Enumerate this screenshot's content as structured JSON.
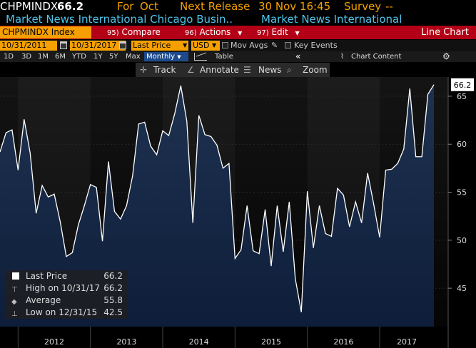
{
  "header": {
    "ticker": "CHPMINDX",
    "last": "66.2",
    "for_label": "For",
    "for_value": "Oct",
    "next_release_label": "Next Release",
    "next_release_value": "30 Nov 16:45",
    "survey_label": "Survey",
    "survey_value": "--",
    "source_left": "Market News International Chicago Busin..",
    "source_right": "Market News International"
  },
  "toolbar": {
    "ticker_field": "CHPMINDX Index",
    "compare_num": "95)",
    "compare_label": "Compare",
    "actions_num": "96)",
    "actions_label": "Actions",
    "edit_num": "97)",
    "edit_label": "Edit",
    "chart_type": "Line Chart"
  },
  "range": {
    "start": "10/31/2011",
    "end": "10/31/2017",
    "field": "Last Price",
    "currency": "USD",
    "mov_avgs": "Mov Avgs",
    "key_events": "Key Events"
  },
  "periods": {
    "items": [
      "1D",
      "3D",
      "1M",
      "6M",
      "YTD",
      "1Y",
      "5Y",
      "Max"
    ],
    "frequency": "Monthly",
    "table_label": "Table",
    "chart_content_label": "Chart Content"
  },
  "tools": {
    "track": "Track",
    "annotate": "Annotate",
    "news": "News",
    "zoom": "Zoom"
  },
  "legend": {
    "last_price_label": "Last Price",
    "last_price_value": "66.2",
    "high_label": "High on 10/31/17",
    "high_value": "66.2",
    "average_label": "Average",
    "average_value": "55.8",
    "low_label": "Low on 12/31/15",
    "low_value": "42.5"
  },
  "colors": {
    "background": "#000000",
    "accent_orange": "#f5a000",
    "toolbar_red": "#b30016",
    "source_cyan": "#4fc3e8",
    "area_fill_top": "#203a5c",
    "line": "#ffffff"
  },
  "chart_data": {
    "type": "area",
    "x_start": "2011-10",
    "x_end": "2017-10",
    "frequency": "monthly",
    "x_ticks": [
      "2012",
      "2013",
      "2014",
      "2015",
      "2016",
      "2017"
    ],
    "y_ticks": [
      45,
      50,
      55,
      60,
      65
    ],
    "ylim": [
      41,
      67
    ],
    "last_value_label": "66.2",
    "series": [
      {
        "name": "Last Price",
        "values": [
          59.2,
          61.2,
          61.5,
          57.3,
          62.6,
          59.1,
          52.8,
          55.7,
          54.5,
          54.8,
          51.9,
          48.3,
          48.7,
          51.6,
          53.6,
          55.8,
          55.5,
          49.9,
          58.2,
          53.0,
          52.2,
          53.6,
          56.7,
          62.1,
          62.3,
          59.8,
          58.9,
          61.4,
          60.9,
          63.2,
          66.1,
          62.4,
          51.8,
          63.0,
          61.0,
          60.8,
          59.9,
          57.5,
          58.0,
          48.1,
          49.0,
          53.6,
          48.9,
          48.6,
          53.2,
          47.3,
          53.6,
          48.8,
          54.0,
          46.0,
          42.5,
          55.1,
          49.2,
          53.6,
          50.7,
          50.4,
          55.4,
          54.7,
          51.4,
          54.0,
          51.8,
          57.0,
          53.8,
          50.3,
          57.3,
          57.4,
          58.0,
          59.5,
          65.8,
          58.7,
          58.7,
          65.2,
          66.2
        ]
      }
    ]
  }
}
